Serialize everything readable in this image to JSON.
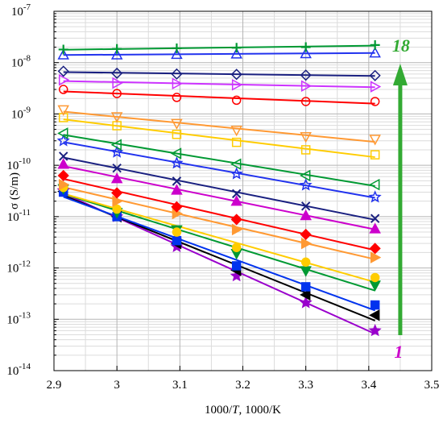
{
  "chart_data": {
    "type": "scatter",
    "xlabel_prefix": "1000/",
    "xlabel_italic": "T",
    "xlabel_suffix": ", 1000/K",
    "ylabel": "σ (S/m)",
    "xlim": [
      2.9,
      3.5
    ],
    "ylim": [
      1e-14,
      1e-07
    ],
    "yscale": "log",
    "grid": true,
    "xticks": [
      "2.9",
      "3",
      "3.1",
      "3.2",
      "3.3",
      "3.4",
      "3.5"
    ],
    "yticks": [
      {
        "base": "10",
        "exp": "-14"
      },
      {
        "base": "10",
        "exp": "-13"
      },
      {
        "base": "10",
        "exp": "-12"
      },
      {
        "base": "10",
        "exp": "-11"
      },
      {
        "base": "10",
        "exp": "-10"
      },
      {
        "base": "10",
        "exp": "-9"
      },
      {
        "base": "10",
        "exp": "-8"
      },
      {
        "base": "10",
        "exp": "-7"
      }
    ],
    "x": [
      2.915,
      3.0,
      3.095,
      3.19,
      3.3,
      3.41
    ],
    "series": [
      {
        "color": "#9900cc",
        "marker": "star",
        "filled": true,
        "values": [
          3.2e-11,
          1e-11,
          2.6e-12,
          7e-13,
          2.1e-13,
          6e-14
        ]
      },
      {
        "color": "#000000",
        "marker": "triangle-left",
        "filled": true,
        "values": [
          3.1e-11,
          1e-11,
          3e-12,
          9e-13,
          3e-13,
          1.2e-13
        ]
      },
      {
        "color": "#0033ee",
        "marker": "square",
        "filled": true,
        "values": [
          3e-11,
          1e-11,
          3.4e-12,
          1.1e-12,
          4.3e-13,
          1.9e-13
        ]
      },
      {
        "color": "#009933",
        "marker": "triangle-down",
        "filled": true,
        "values": [
          3.5e-11,
          1.2e-11,
          5.5e-12,
          1.9e-12,
          8.8e-13,
          4.6e-13
        ]
      },
      {
        "color": "#ffcc00",
        "marker": "circle",
        "filled": true,
        "values": [
          3.7e-11,
          1.4e-11,
          5e-12,
          2.5e-12,
          1.3e-12,
          6.5e-13
        ]
      },
      {
        "color": "#ff9933",
        "marker": "triangle-right",
        "filled": true,
        "values": [
          4.2e-11,
          2e-11,
          1.15e-11,
          5.6e-12,
          3e-12,
          1.6e-12
        ]
      },
      {
        "color": "#ff0000",
        "marker": "diamond",
        "filled": true,
        "values": [
          6.3e-11,
          2.9e-11,
          1.55e-11,
          8.8e-12,
          4.5e-12,
          2.4e-12
        ]
      },
      {
        "color": "#cc00cc",
        "marker": "triangle-up",
        "filled": true,
        "values": [
          1.05e-10,
          5.5e-11,
          3.3e-11,
          2e-11,
          1.05e-11,
          5.8e-12
        ]
      },
      {
        "color": "#1a2080",
        "marker": "x",
        "filled": false,
        "values": [
          1.5e-10,
          8.8e-11,
          4.9e-11,
          2.8e-11,
          1.6e-11,
          9.2e-12
        ]
      },
      {
        "color": "#2233ee",
        "marker": "star",
        "filled": false,
        "values": [
          3e-10,
          1.8e-10,
          1.1e-10,
          6.8e-11,
          4.1e-11,
          2.4e-11
        ]
      },
      {
        "color": "#009933",
        "marker": "triangle-left",
        "filled": false,
        "values": [
          4.2e-10,
          2.5e-10,
          1.7e-10,
          1.05e-10,
          6.3e-11,
          4.2e-11
        ]
      },
      {
        "color": "#ffcc00",
        "marker": "square",
        "filled": false,
        "values": [
          8.5e-10,
          5.9e-10,
          4e-10,
          2.8e-10,
          2e-10,
          1.6e-10
        ]
      },
      {
        "color": "#ff9933",
        "marker": "triangle-down",
        "filled": false,
        "values": [
          1.2e-09,
          8.8e-10,
          6.5e-10,
          4.8e-10,
          3.6e-10,
          3.2e-10
        ]
      },
      {
        "color": "#ff0000",
        "marker": "circle",
        "filled": false,
        "values": [
          3e-09,
          2.5e-09,
          2.1e-09,
          1.85e-09,
          1.75e-09,
          1.75e-09
        ]
      },
      {
        "color": "#cc33ff",
        "marker": "triangle-right",
        "filled": false,
        "values": [
          4.6e-09,
          4e-09,
          3.9e-09,
          3.7e-09,
          3.5e-09,
          3.4e-09
        ]
      },
      {
        "color": "#1a2080",
        "marker": "diamond",
        "filled": false,
        "values": [
          6.8e-09,
          6.2e-09,
          6e-09,
          5.9e-09,
          5.7e-09,
          5.6e-09
        ]
      },
      {
        "color": "#2233ee",
        "marker": "triangle-up",
        "filled": false,
        "values": [
          1.42e-08,
          1.42e-08,
          1.45e-08,
          1.48e-08,
          1.5e-08,
          1.55e-08
        ]
      },
      {
        "color": "#009933",
        "marker": "plus",
        "filled": false,
        "values": [
          1.8e-08,
          1.85e-08,
          1.9e-08,
          1.95e-08,
          2e-08,
          2.2e-08
        ]
      }
    ],
    "annotations": {
      "top_label": "18",
      "top_label_color": "#33aa33",
      "bottom_label": "1",
      "bottom_label_color": "#cc00cc",
      "arrow_color": "#33aa33"
    }
  }
}
